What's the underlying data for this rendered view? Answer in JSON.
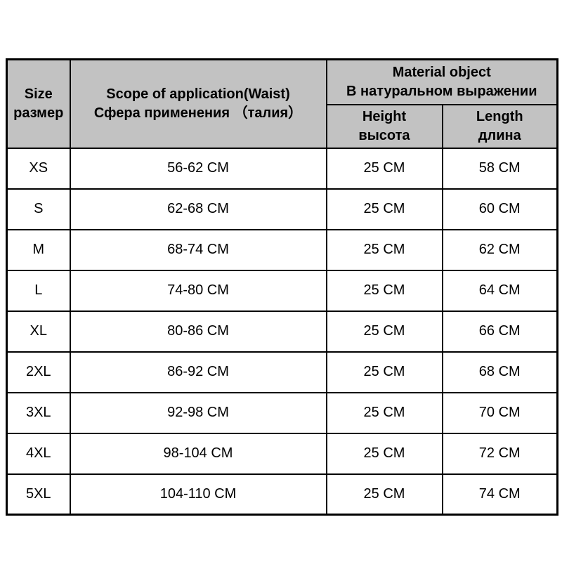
{
  "colors": {
    "header_bg": "#c2c2c2",
    "cell_bg": "#ffffff",
    "border": "#000000",
    "text": "#000000"
  },
  "table": {
    "headers": {
      "size": {
        "en": "Size",
        "ru": "размер"
      },
      "scope": {
        "en": "Scope of application(Waist)",
        "ru": "Сфера применения （талия）"
      },
      "material": {
        "en": "Material object",
        "ru": "В натуральном выражении"
      },
      "height": {
        "en": "Height",
        "ru": "высота"
      },
      "length": {
        "en": "Length",
        "ru": "длина"
      }
    },
    "rows": [
      {
        "size": "XS",
        "waist": "56-62 CM",
        "height": "25 CM",
        "length": "58 CM"
      },
      {
        "size": "S",
        "waist": "62-68 CM",
        "height": "25 CM",
        "length": "60 CM"
      },
      {
        "size": "M",
        "waist": "68-74 CM",
        "height": "25 CM",
        "length": "62 CM"
      },
      {
        "size": "L",
        "waist": "74-80 CM",
        "height": "25 CM",
        "length": "64 CM"
      },
      {
        "size": "XL",
        "waist": "80-86 CM",
        "height": "25 CM",
        "length": "66 CM"
      },
      {
        "size": "2XL",
        "waist": "86-92 CM",
        "height": "25 CM",
        "length": "68 CM"
      },
      {
        "size": "3XL",
        "waist": "92-98 CM",
        "height": "25 CM",
        "length": "70 CM"
      },
      {
        "size": "4XL",
        "waist": "98-104 CM",
        "height": "25 CM",
        "length": "72 CM"
      },
      {
        "size": "5XL",
        "waist": "104-110 CM",
        "height": "25 CM",
        "length": "74 CM"
      }
    ]
  },
  "chart_data": {
    "type": "table",
    "title": "",
    "columns": [
      "Size размер",
      "Scope of application(Waist) Сфера применения （талия）",
      "Height высота",
      "Length длина"
    ],
    "column_group": "Material object В натуральном выражении (spans Height and Length)",
    "rows": [
      [
        "XS",
        "56-62 CM",
        "25 CM",
        "58 CM"
      ],
      [
        "S",
        "62-68 CM",
        "25 CM",
        "60 CM"
      ],
      [
        "M",
        "68-74 CM",
        "25 CM",
        "62 CM"
      ],
      [
        "L",
        "74-80 CM",
        "25 CM",
        "64 CM"
      ],
      [
        "XL",
        "80-86 CM",
        "25 CM",
        "66 CM"
      ],
      [
        "2XL",
        "86-92 CM",
        "25 CM",
        "68 CM"
      ],
      [
        "3XL",
        "92-98 CM",
        "25 CM",
        "70 CM"
      ],
      [
        "4XL",
        "98-104 CM",
        "25 CM",
        "72 CM"
      ],
      [
        "5XL",
        "104-110 CM",
        "25 CM",
        "74 CM"
      ]
    ]
  }
}
